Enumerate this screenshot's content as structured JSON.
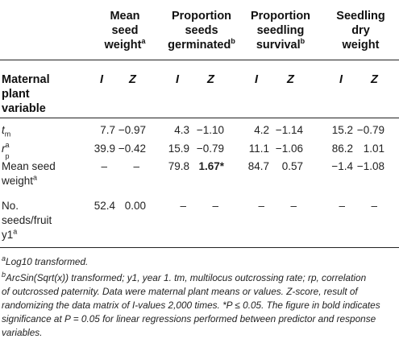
{
  "columns": [
    {
      "line1": "Mean",
      "line2": "seed",
      "line3": "weight",
      "sup": "a"
    },
    {
      "line1": "Proportion",
      "line2": "seeds",
      "line3": "germinated",
      "sup": "b"
    },
    {
      "line1": "Proportion",
      "line2": "seedling",
      "line3": "survival",
      "sup": "b"
    },
    {
      "line1": "Seedling",
      "line2": "dry",
      "line3": "weight",
      "sup": ""
    }
  ],
  "row_header": {
    "line1": "Maternal",
    "line2": "plant",
    "line3": "variable"
  },
  "subheaders": [
    "I",
    "Z",
    "I",
    "Z",
    "I",
    "Z",
    "I",
    "Z"
  ],
  "rows": [
    {
      "label": "t",
      "label_sub": "m",
      "label_sup": "",
      "values": [
        "7.7",
        "−0.97",
        "4.3",
        "−1.10",
        "4.2",
        "−1.14",
        "15.2",
        "−0.79"
      ]
    },
    {
      "label": "r",
      "label_sub": "p",
      "label_sup": "a",
      "values": [
        "39.9",
        "−0.42",
        "15.9",
        "−0.79",
        "11.1",
        "−1.06",
        "86.2",
        "1.01"
      ]
    },
    {
      "label": "Mean seed",
      "label2": "weight",
      "label_sup": "a",
      "values": [
        "–",
        "–",
        "79.8",
        "1.67*",
        "84.7",
        "0.57",
        "−1.4",
        "−1.08"
      ],
      "bold_index": 3
    },
    {
      "label": "No.",
      "label2": "seeds/fruit",
      "label3": "y1",
      "label_sup": "a",
      "values": [
        "52.4",
        "0.00",
        "–",
        "–",
        "–",
        "–",
        "–",
        "–"
      ]
    }
  ],
  "footnotes": {
    "a_mark": "a",
    "a_text": "Log10 transformed.",
    "b_mark": "b",
    "b_lines": [
      "ArcSin(Sqrt(x)) transformed; y1, year 1. tm, multilocus outcrossing rate; rp, correlation",
      "of outcrossed paternity. Data were maternal plant means or values. Z-score, result of",
      "randomizing the data matrix of I-values 2,000 times. *P ≤ 0.05. The figure in bold indicates",
      "significance at P = 0.05 for linear regressions performed between predictor and response",
      "variables."
    ]
  }
}
